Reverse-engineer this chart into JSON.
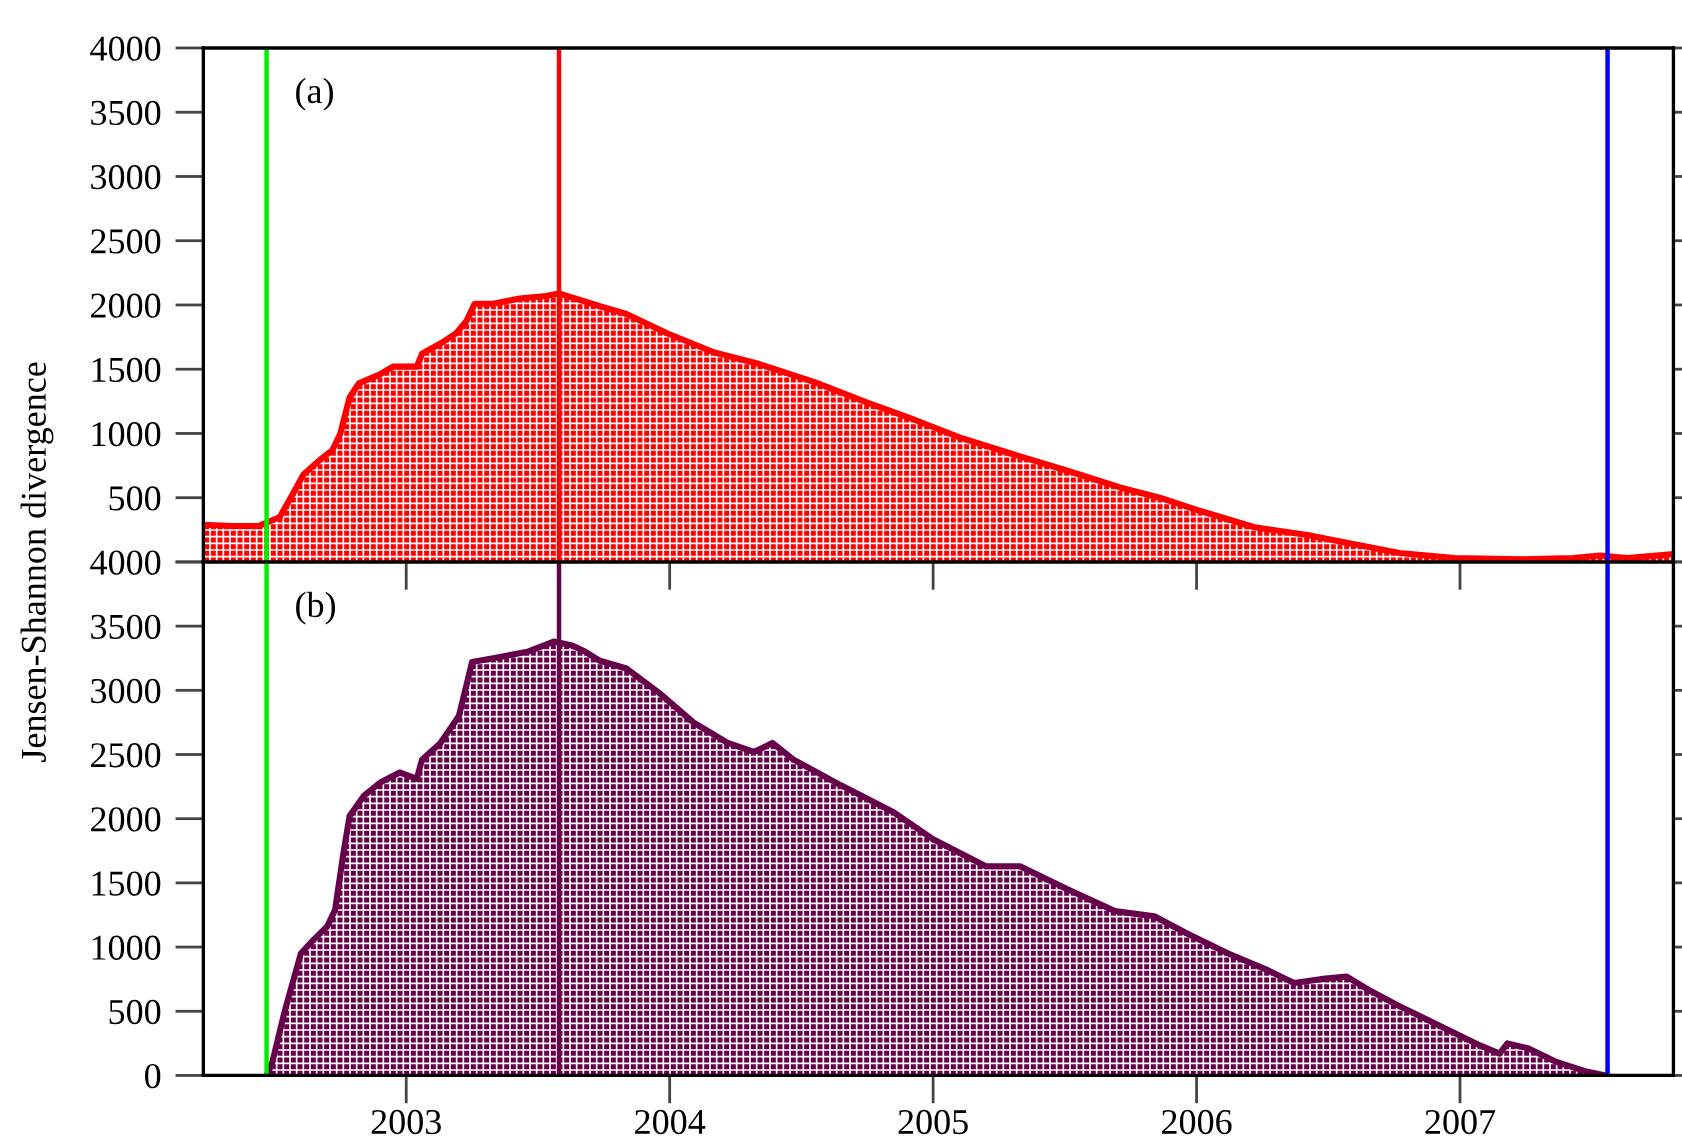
{
  "chart_data": [
    {
      "type": "area",
      "ylabel": "Jensen-Shannon divergence",
      "annotations": [
        "(a)"
      ],
      "tick_labels": "y",
      "x": [
        2002.23,
        2002.34,
        2002.44,
        2002.52,
        2002.57,
        2002.61,
        2002.67,
        2002.72,
        2002.75,
        2002.785,
        2002.82,
        2002.9,
        2002.95,
        2003.04,
        2003.06,
        2003.13,
        2003.19,
        2003.23,
        2003.26,
        2003.33,
        2003.43,
        2003.53,
        2003.58,
        2003.735,
        2003.836,
        2003.99,
        2004.17,
        2004.34,
        2004.55,
        2004.75,
        2004.9,
        2005.1,
        2005.3,
        2005.51,
        2005.71,
        2005.86,
        2006.01,
        2006.22,
        2006.42,
        2006.57,
        2006.77,
        2006.98,
        2007.23,
        2007.43,
        2007.53,
        2007.635,
        2007.81
      ],
      "series": [
        {
          "color": "#ff0000",
          "values": [
            290,
            280,
            280,
            350,
            530,
            680,
            790,
            870,
            1000,
            1280,
            1390,
            1460,
            1520,
            1520,
            1620,
            1700,
            1780,
            1880,
            2010,
            2010,
            2050,
            2070,
            2090,
            1990,
            1930,
            1780,
            1630,
            1540,
            1400,
            1240,
            1130,
            970,
            840,
            710,
            580,
            500,
            400,
            270,
            210,
            150,
            70,
            30,
            20,
            30,
            50,
            30,
            60
          ]
        }
      ],
      "xlim": [
        2002.23,
        2007.81
      ],
      "xticks": [
        2003,
        2004,
        2005,
        2006,
        2007
      ],
      "ylim": [
        0,
        4000
      ],
      "yticks": [
        {
          "value": 0,
          "label": null
        },
        500,
        1000,
        1500,
        2000,
        2500,
        3000,
        3500,
        4000
      ],
      "ref_lines": [
        {
          "axis": "x",
          "value": 2002.47,
          "color": "#00ee00"
        },
        {
          "axis": "x",
          "value": 2003.58,
          "color": "#ff0000"
        },
        {
          "axis": "x",
          "value": 2007.56,
          "color": "#0000ff"
        }
      ]
    },
    {
      "type": "area",
      "annotations": [
        "(b)"
      ],
      "x": [
        2002.47,
        2002.49,
        2002.54,
        2002.6,
        2002.65,
        2002.7,
        2002.73,
        2002.76,
        2002.785,
        2002.84,
        2002.9,
        2002.975,
        2003.04,
        2003.06,
        2003.13,
        2003.2,
        2003.25,
        2003.33,
        2003.46,
        2003.56,
        2003.63,
        2003.68,
        2003.735,
        2003.836,
        2003.96,
        2004.09,
        2004.22,
        2004.32,
        2004.39,
        2004.47,
        2004.65,
        2004.85,
        2005.0,
        2005.2,
        2005.33,
        2005.51,
        2005.69,
        2005.84,
        2005.96,
        2006.12,
        2006.27,
        2006.37,
        2006.47,
        2006.57,
        2006.65,
        2006.77,
        2006.93,
        2007.08,
        2007.15,
        2007.18,
        2007.26,
        2007.36,
        2007.48,
        2007.55
      ],
      "series": [
        {
          "color": "#66004a",
          "values": [
            0,
            90,
            510,
            950,
            1060,
            1160,
            1290,
            1710,
            2020,
            2180,
            2280,
            2360,
            2310,
            2460,
            2590,
            2800,
            3220,
            3250,
            3300,
            3380,
            3350,
            3300,
            3230,
            3170,
            2980,
            2750,
            2590,
            2520,
            2590,
            2460,
            2260,
            2050,
            1840,
            1630,
            1630,
            1450,
            1280,
            1240,
            1110,
            950,
            820,
            720,
            750,
            770,
            670,
            540,
            380,
            230,
            170,
            250,
            210,
            110,
            30,
            0
          ]
        }
      ],
      "xlim": [
        2002.23,
        2007.81
      ],
      "xticks": [
        2003,
        2004,
        2005,
        2006,
        2007
      ],
      "ylim": [
        0,
        4000
      ],
      "yticks": [
        0,
        500,
        1000,
        1500,
        2000,
        2500,
        3000,
        3500,
        4000
      ],
      "ref_lines": [
        {
          "axis": "x",
          "value": 2002.47,
          "color": "#00ee00"
        },
        {
          "axis": "x",
          "value": 2003.58,
          "color": "#66004a"
        },
        {
          "axis": "x",
          "value": 2007.56,
          "color": "#0000ff"
        }
      ]
    }
  ]
}
